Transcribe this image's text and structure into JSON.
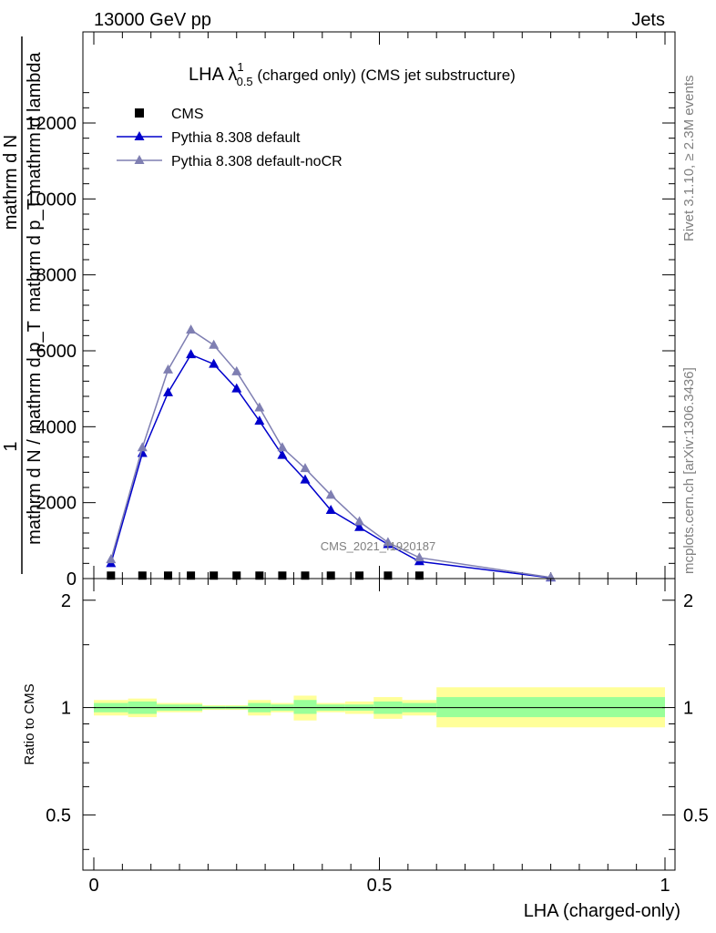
{
  "header": {
    "left": "13000 GeV pp",
    "right": "Jets"
  },
  "side": {
    "rivet": "Rivet 3.1.10, ≥ 2.3M events",
    "mcplots": "mcplots.cern.ch [arXiv:1306.3436]"
  },
  "colors": {
    "cms": "#000000",
    "pythia_default": "#0000cc",
    "pythia_nocr": "#7f7fb2",
    "band_inner": "#99ff99",
    "band_outer": "#ffff99"
  },
  "chart_data": [
    {
      "type": "line",
      "title_main": "LHA λ",
      "title_sup": "1",
      "title_sub": "0.5",
      "title_rest": " (charged only) (CMS jet substructure)",
      "ylabel_num": "1",
      "ylabel_den": "mathrm d N / mathrm d p_T",
      "ylabel_right_num": "mathrm d N",
      "ylabel_right_den": "mathrm d p_T mathrm d lambda",
      "xlim": [
        0,
        1
      ],
      "ylim": [
        0,
        14400
      ],
      "yticks": [
        0,
        2000,
        4000,
        6000,
        8000,
        10000,
        12000
      ],
      "watermark": "CMS_2021_I1920187",
      "legend_placement": "top-left",
      "series": [
        {
          "name": "CMS",
          "marker": "square",
          "x": [
            0.03,
            0.085,
            0.13,
            0.17,
            0.21,
            0.25,
            0.29,
            0.33,
            0.37,
            0.415,
            0.465,
            0.515,
            0.57
          ],
          "y": [
            30,
            30,
            30,
            30,
            30,
            30,
            30,
            30,
            30,
            30,
            30,
            30,
            30
          ]
        },
        {
          "name": "Pythia 8.308 default",
          "marker": "triangle",
          "x": [
            0.03,
            0.085,
            0.13,
            0.17,
            0.21,
            0.25,
            0.29,
            0.33,
            0.37,
            0.415,
            0.465,
            0.515,
            0.57,
            0.8
          ],
          "y": [
            400,
            3300,
            4900,
            5900,
            5650,
            5000,
            4150,
            3250,
            2600,
            1800,
            1350,
            900,
            450,
            20
          ]
        },
        {
          "name": "Pythia 8.308 default-noCR",
          "marker": "triangle",
          "x": [
            0.03,
            0.085,
            0.13,
            0.17,
            0.21,
            0.25,
            0.29,
            0.33,
            0.37,
            0.415,
            0.465,
            0.515,
            0.57,
            0.8
          ],
          "y": [
            500,
            3450,
            5500,
            6550,
            6150,
            5450,
            4500,
            3450,
            2900,
            2200,
            1500,
            950,
            550,
            30
          ]
        }
      ]
    },
    {
      "type": "area",
      "ylabel": "Ratio to CMS",
      "xlabel": "LHA (charged-only)",
      "xlim": [
        0,
        1
      ],
      "ylim": [
        0.35,
        2.3
      ],
      "yscale": "log",
      "yticks": [
        0.5,
        1,
        2
      ],
      "xticks": [
        0,
        0.5,
        1
      ],
      "bins": [
        {
          "x0": 0.0,
          "x1": 0.06,
          "inner": [
            0.97,
            1.03
          ],
          "outer": [
            0.95,
            1.05
          ]
        },
        {
          "x0": 0.06,
          "x1": 0.11,
          "inner": [
            0.96,
            1.04
          ],
          "outer": [
            0.94,
            1.06
          ]
        },
        {
          "x0": 0.11,
          "x1": 0.15,
          "inner": [
            0.98,
            1.02
          ],
          "outer": [
            0.97,
            1.03
          ]
        },
        {
          "x0": 0.15,
          "x1": 0.19,
          "inner": [
            0.98,
            1.02
          ],
          "outer": [
            0.97,
            1.03
          ]
        },
        {
          "x0": 0.19,
          "x1": 0.23,
          "inner": [
            0.99,
            1.01
          ],
          "outer": [
            0.985,
            1.015
          ]
        },
        {
          "x0": 0.23,
          "x1": 0.27,
          "inner": [
            0.99,
            1.01
          ],
          "outer": [
            0.985,
            1.015
          ]
        },
        {
          "x0": 0.27,
          "x1": 0.31,
          "inner": [
            0.97,
            1.03
          ],
          "outer": [
            0.95,
            1.05
          ]
        },
        {
          "x0": 0.31,
          "x1": 0.35,
          "inner": [
            0.98,
            1.02
          ],
          "outer": [
            0.97,
            1.03
          ]
        },
        {
          "x0": 0.35,
          "x1": 0.39,
          "inner": [
            0.96,
            1.05
          ],
          "outer": [
            0.92,
            1.08
          ]
        },
        {
          "x0": 0.39,
          "x1": 0.44,
          "inner": [
            0.98,
            1.02
          ],
          "outer": [
            0.97,
            1.03
          ]
        },
        {
          "x0": 0.44,
          "x1": 0.49,
          "inner": [
            0.98,
            1.02
          ],
          "outer": [
            0.96,
            1.04
          ]
        },
        {
          "x0": 0.49,
          "x1": 0.54,
          "inner": [
            0.96,
            1.04
          ],
          "outer": [
            0.93,
            1.07
          ]
        },
        {
          "x0": 0.54,
          "x1": 0.6,
          "inner": [
            0.97,
            1.03
          ],
          "outer": [
            0.95,
            1.05
          ]
        },
        {
          "x0": 0.6,
          "x1": 1.0,
          "inner": [
            0.94,
            1.07
          ],
          "outer": [
            0.88,
            1.14
          ]
        }
      ]
    }
  ]
}
